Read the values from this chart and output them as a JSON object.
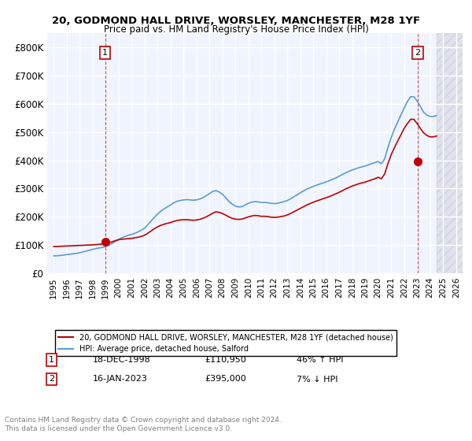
{
  "title_line1": "20, GODMOND HALL DRIVE, WORSLEY, MANCHESTER, M28 1YF",
  "title_line2": "Price paid vs. HM Land Registry's House Price Index (HPI)",
  "xlabel": "",
  "ylabel": "",
  "ylim": [
    0,
    850000
  ],
  "yticks": [
    0,
    100000,
    200000,
    300000,
    400000,
    500000,
    600000,
    700000,
    800000
  ],
  "ytick_labels": [
    "£0",
    "£100K",
    "£200K",
    "£300K",
    "£400K",
    "£500K",
    "£600K",
    "£700K",
    "£800K"
  ],
  "xlim_start": 1994.5,
  "xlim_end": 2026.5,
  "hpi_color": "#5b9bd5",
  "price_color": "#c00000",
  "bg_color": "#f0f4ff",
  "grid_color": "#ffffff",
  "transaction1_x": 1998.96,
  "transaction1_y": 110950,
  "transaction2_x": 2023.04,
  "transaction2_y": 395000,
  "transaction1_label": "18-DEC-1998",
  "transaction1_price": "£110,950",
  "transaction1_hpi": "46% ↑ HPI",
  "transaction2_label": "16-JAN-2023",
  "transaction2_price": "£395,000",
  "transaction2_hpi": "7% ↓ HPI",
  "legend_line1": "20, GODMOND HALL DRIVE, WORSLEY, MANCHESTER, M28 1YF (detached house)",
  "legend_line2": "HPI: Average price, detached house, Salford",
  "footer": "Contains HM Land Registry data © Crown copyright and database right 2024.\nThis data is licensed under the Open Government Licence v3.0.",
  "hpi_years": [
    1995.0,
    1995.25,
    1995.5,
    1995.75,
    1996.0,
    1996.25,
    1996.5,
    1996.75,
    1997.0,
    1997.25,
    1997.5,
    1997.75,
    1998.0,
    1998.25,
    1998.5,
    1998.75,
    1999.0,
    1999.25,
    1999.5,
    1999.75,
    2000.0,
    2000.25,
    2000.5,
    2000.75,
    2001.0,
    2001.25,
    2001.5,
    2001.75,
    2002.0,
    2002.25,
    2002.5,
    2002.75,
    2003.0,
    2003.25,
    2003.5,
    2003.75,
    2004.0,
    2004.25,
    2004.5,
    2004.75,
    2005.0,
    2005.25,
    2005.5,
    2005.75,
    2006.0,
    2006.25,
    2006.5,
    2006.75,
    2007.0,
    2007.25,
    2007.5,
    2007.75,
    2008.0,
    2008.25,
    2008.5,
    2008.75,
    2009.0,
    2009.25,
    2009.5,
    2009.75,
    2010.0,
    2010.25,
    2010.5,
    2010.75,
    2011.0,
    2011.25,
    2011.5,
    2011.75,
    2012.0,
    2012.25,
    2012.5,
    2012.75,
    2013.0,
    2013.25,
    2013.5,
    2013.75,
    2014.0,
    2014.25,
    2014.5,
    2014.75,
    2015.0,
    2015.25,
    2015.5,
    2015.75,
    2016.0,
    2016.25,
    2016.5,
    2016.75,
    2017.0,
    2017.25,
    2017.5,
    2017.75,
    2018.0,
    2018.25,
    2018.5,
    2018.75,
    2019.0,
    2019.25,
    2019.5,
    2019.75,
    2020.0,
    2020.25,
    2020.5,
    2020.75,
    2021.0,
    2021.25,
    2021.5,
    2021.75,
    2022.0,
    2022.25,
    2022.5,
    2022.75,
    2023.0,
    2023.25,
    2023.5,
    2023.75,
    2024.0,
    2024.25,
    2024.5
  ],
  "hpi_values": [
    62000,
    62500,
    63500,
    65000,
    66500,
    68000,
    69500,
    71000,
    73000,
    76000,
    79000,
    82000,
    85000,
    88000,
    90000,
    92000,
    95000,
    100000,
    106000,
    113000,
    120000,
    126000,
    131000,
    135000,
    138000,
    142000,
    147000,
    153000,
    160000,
    172000,
    185000,
    198000,
    210000,
    220000,
    228000,
    235000,
    242000,
    250000,
    255000,
    258000,
    260000,
    261000,
    260000,
    259000,
    260000,
    263000,
    268000,
    275000,
    282000,
    290000,
    293000,
    288000,
    280000,
    268000,
    255000,
    245000,
    238000,
    235000,
    236000,
    242000,
    248000,
    252000,
    254000,
    253000,
    251000,
    251000,
    250000,
    248000,
    247000,
    248000,
    251000,
    254000,
    258000,
    264000,
    271000,
    278000,
    285000,
    292000,
    298000,
    303000,
    308000,
    312000,
    316000,
    320000,
    324000,
    328000,
    333000,
    338000,
    344000,
    350000,
    356000,
    361000,
    366000,
    370000,
    374000,
    377000,
    380000,
    384000,
    388000,
    392000,
    396000,
    388000,
    405000,
    445000,
    480000,
    510000,
    535000,
    560000,
    585000,
    608000,
    625000,
    625000,
    610000,
    590000,
    570000,
    560000,
    555000,
    555000,
    558000
  ],
  "price_years": [
    1995.0,
    1995.25,
    1995.5,
    1995.75,
    1996.0,
    1996.25,
    1996.5,
    1996.75,
    1997.0,
    1997.25,
    1997.5,
    1997.75,
    1998.0,
    1998.25,
    1998.5,
    1998.75,
    1999.0,
    1999.25,
    1999.5,
    1999.75,
    2000.0,
    2000.25,
    2000.5,
    2000.75,
    2001.0,
    2001.25,
    2001.5,
    2001.75,
    2002.0,
    2002.25,
    2002.5,
    2002.75,
    2003.0,
    2003.25,
    2003.5,
    2003.75,
    2004.0,
    2004.25,
    2004.5,
    2004.75,
    2005.0,
    2005.25,
    2005.5,
    2005.75,
    2006.0,
    2006.25,
    2006.5,
    2006.75,
    2007.0,
    2007.25,
    2007.5,
    2007.75,
    2008.0,
    2008.25,
    2008.5,
    2008.75,
    2009.0,
    2009.25,
    2009.5,
    2009.75,
    2010.0,
    2010.25,
    2010.5,
    2010.75,
    2011.0,
    2011.25,
    2011.5,
    2011.75,
    2012.0,
    2012.25,
    2012.5,
    2012.75,
    2013.0,
    2013.25,
    2013.5,
    2013.75,
    2014.0,
    2014.25,
    2014.5,
    2014.75,
    2015.0,
    2015.25,
    2015.5,
    2015.75,
    2016.0,
    2016.25,
    2016.5,
    2016.75,
    2017.0,
    2017.25,
    2017.5,
    2017.75,
    2018.0,
    2018.25,
    2018.5,
    2018.75,
    2019.0,
    2019.25,
    2019.5,
    2019.75,
    2020.0,
    2020.25,
    2020.5,
    2020.75,
    2021.0,
    2021.25,
    2021.5,
    2021.75,
    2022.0,
    2022.25,
    2022.5,
    2022.75,
    2023.0,
    2023.25,
    2023.5,
    2023.75,
    2024.0,
    2024.25,
    2024.5
  ],
  "price_values": [
    95000,
    95500,
    96000,
    96500,
    97000,
    97500,
    98000,
    98500,
    99000,
    99500,
    100000,
    100500,
    101000,
    102000,
    103000,
    104000,
    105000,
    108000,
    112000,
    116000,
    119000,
    121000,
    122000,
    123000,
    124000,
    126000,
    128000,
    131000,
    135000,
    142000,
    150000,
    158000,
    165000,
    170000,
    174000,
    177000,
    180000,
    184000,
    187000,
    189000,
    190000,
    190000,
    189000,
    188000,
    189000,
    191000,
    195000,
    200000,
    206000,
    213000,
    218000,
    216000,
    212000,
    206000,
    200000,
    195000,
    192000,
    191000,
    192000,
    196000,
    200000,
    203000,
    205000,
    204000,
    202000,
    202000,
    201000,
    199000,
    198000,
    199000,
    201000,
    203000,
    207000,
    212000,
    218000,
    224000,
    230000,
    236000,
    242000,
    247000,
    252000,
    256000,
    260000,
    264000,
    268000,
    272000,
    277000,
    282000,
    287000,
    293000,
    299000,
    304000,
    309000,
    313000,
    317000,
    320000,
    323000,
    327000,
    331000,
    335000,
    340000,
    335000,
    352000,
    388000,
    420000,
    445000,
    468000,
    490000,
    513000,
    530000,
    545000,
    545000,
    530000,
    513000,
    497000,
    488000,
    483000,
    483000,
    486000
  ],
  "xtick_years": [
    1995,
    1996,
    1997,
    1998,
    1999,
    2000,
    2001,
    2002,
    2003,
    2004,
    2005,
    2006,
    2007,
    2008,
    2009,
    2010,
    2011,
    2012,
    2013,
    2014,
    2015,
    2016,
    2017,
    2018,
    2019,
    2020,
    2021,
    2022,
    2023,
    2024,
    2025,
    2026
  ]
}
